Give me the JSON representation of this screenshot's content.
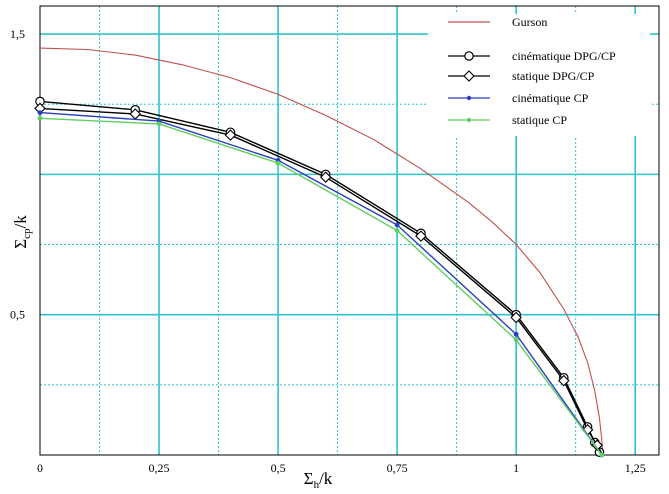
{
  "chart_data": {
    "type": "line",
    "title": "",
    "xlabel": "Σ",
    "xlabel_sub": "h",
    "xlabel_suffix": "/k",
    "ylabel": "Σ",
    "ylabel_sub": "cp",
    "ylabel_suffix": "/k",
    "xlim": [
      0,
      1.3
    ],
    "ylim": [
      0,
      1.6
    ],
    "xticks": [
      {
        "value": 0,
        "label": "0"
      },
      {
        "value": 0.25,
        "label": "0,25"
      },
      {
        "value": 0.5,
        "label": "0,5"
      },
      {
        "value": 0.75,
        "label": "0,75"
      },
      {
        "value": 1,
        "label": "1"
      },
      {
        "value": 1.25,
        "label": "1,25"
      }
    ],
    "yticks": [
      {
        "value": 0.5,
        "label": "0,5"
      },
      {
        "value": 1.5,
        "label": "1,5"
      }
    ],
    "grid": true,
    "grid_color": "#2fc3cf",
    "legend_position": "top-right",
    "series": [
      {
        "name": "Gurson",
        "color": "#c0504d",
        "marker": "none",
        "points": [
          [
            0,
            1.45
          ],
          [
            0.1,
            1.445
          ],
          [
            0.2,
            1.425
          ],
          [
            0.3,
            1.39
          ],
          [
            0.4,
            1.345
          ],
          [
            0.5,
            1.285
          ],
          [
            0.6,
            1.21
          ],
          [
            0.7,
            1.125
          ],
          [
            0.8,
            1.02
          ],
          [
            0.9,
            0.9
          ],
          [
            0.95,
            0.83
          ],
          [
            1.0,
            0.75
          ],
          [
            1.05,
            0.65
          ],
          [
            1.1,
            0.52
          ],
          [
            1.13,
            0.42
          ],
          [
            1.15,
            0.33
          ],
          [
            1.165,
            0.23
          ],
          [
            1.175,
            0.13
          ],
          [
            1.18,
            0.05
          ],
          [
            1.182,
            0
          ]
        ]
      },
      {
        "name": "cinématique DPG/CP",
        "color": "#000000",
        "marker": "circle",
        "points": [
          [
            0,
            1.26
          ],
          [
            0.2,
            1.23
          ],
          [
            0.4,
            1.15
          ],
          [
            0.6,
            1.0
          ],
          [
            0.8,
            0.79
          ],
          [
            1.0,
            0.5
          ],
          [
            1.1,
            0.275
          ],
          [
            1.15,
            0.1
          ],
          [
            1.165,
            0.045
          ],
          [
            1.175,
            0.01
          ]
        ],
        "marker_points": [
          [
            0,
            1.26
          ],
          [
            0.2,
            1.23
          ],
          [
            0.4,
            1.15
          ],
          [
            0.6,
            1.0
          ],
          [
            0.8,
            0.79
          ],
          [
            1.0,
            0.5
          ],
          [
            1.1,
            0.275
          ],
          [
            1.15,
            0.1
          ],
          [
            1.165,
            0.045
          ],
          [
            1.175,
            0.01
          ]
        ]
      },
      {
        "name": "statique DPG/CP",
        "color": "#000000",
        "marker": "diamond",
        "points": [
          [
            0,
            1.235
          ],
          [
            0.2,
            1.215
          ],
          [
            0.4,
            1.14
          ],
          [
            0.6,
            0.99
          ],
          [
            0.8,
            0.78
          ],
          [
            1.0,
            0.49
          ],
          [
            1.1,
            0.265
          ],
          [
            1.15,
            0.09
          ],
          [
            1.17,
            0.035
          ],
          [
            1.18,
            0.005
          ]
        ],
        "marker_points": [
          [
            0,
            1.235
          ],
          [
            0.2,
            1.215
          ],
          [
            0.4,
            1.14
          ],
          [
            0.6,
            0.99
          ],
          [
            0.8,
            0.78
          ],
          [
            1.0,
            0.49
          ],
          [
            1.1,
            0.265
          ],
          [
            1.15,
            0.09
          ],
          [
            1.17,
            0.035
          ]
        ]
      },
      {
        "name": "cinématique CP",
        "color": "#2a3fbf",
        "marker": "dot",
        "points": [
          [
            0,
            1.22
          ],
          [
            0.25,
            1.19
          ],
          [
            0.5,
            1.05
          ],
          [
            0.75,
            0.82
          ],
          [
            1.0,
            0.43
          ],
          [
            1.18,
            0.0
          ]
        ],
        "marker_points": [
          [
            0,
            1.22
          ],
          [
            0.25,
            1.19
          ],
          [
            0.5,
            1.05
          ],
          [
            0.75,
            0.82
          ],
          [
            1.0,
            0.43
          ],
          [
            1.18,
            0.0
          ]
        ]
      },
      {
        "name": "statique CP",
        "color": "#5fcf5f",
        "marker": "dot",
        "points": [
          [
            0,
            1.2
          ],
          [
            0.25,
            1.18
          ],
          [
            0.5,
            1.04
          ],
          [
            0.75,
            0.8
          ],
          [
            1.0,
            0.41
          ],
          [
            1.18,
            0.0
          ]
        ],
        "marker_points": [
          [
            0,
            1.2
          ],
          [
            0.25,
            1.18
          ],
          [
            0.5,
            1.04
          ],
          [
            0.75,
            0.8
          ],
          [
            1.0,
            0.41
          ],
          [
            1.18,
            0.0
          ]
        ]
      }
    ]
  }
}
